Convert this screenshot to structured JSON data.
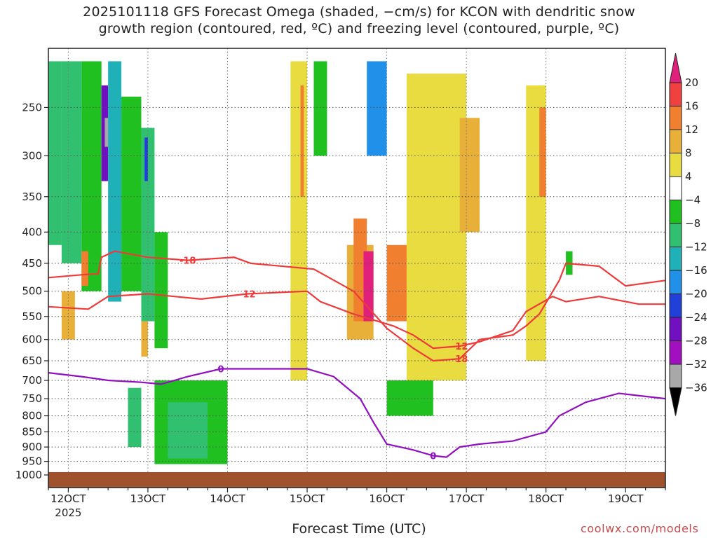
{
  "chart_data": {
    "type": "heatmap",
    "title_line1": "2025101118 GFS Forecast Omega (shaded, −cm/s) for KCON with dendritic snow",
    "title_line2": "growth region (contoured, red, ºC) and freezing level (contoured, purple, ºC)",
    "xlabel": "Forecast Time (UTC)",
    "x_year_label": "2025",
    "credit": "coolwx.com/models",
    "x_ticks": [
      {
        "h": 0,
        "label": "12OCT"
      },
      {
        "h": 24,
        "label": "13OCT"
      },
      {
        "h": 48,
        "label": "14OCT"
      },
      {
        "h": 72,
        "label": "15OCT"
      },
      {
        "h": 96,
        "label": "16OCT"
      },
      {
        "h": 120,
        "label": "17OCT"
      },
      {
        "h": 144,
        "label": "18OCT"
      },
      {
        "h": 168,
        "label": "19OCT"
      }
    ],
    "x_range_h": [
      -6,
      180
    ],
    "y_ticks": [
      250,
      300,
      350,
      400,
      450,
      500,
      550,
      600,
      650,
      700,
      750,
      800,
      850,
      900,
      950,
      1000
    ],
    "y_range_hpa": [
      200,
      1000
    ],
    "y_scale": "log-pressure",
    "grid": true,
    "colorbar": {
      "ticks": [
        "20",
        "16",
        "12",
        "8",
        "4",
        "−4",
        "−8",
        "−12",
        "−16",
        "−20",
        "−24",
        "−28",
        "−32",
        "−36"
      ],
      "colors": [
        "#e0207a",
        "#f04040",
        "#f08030",
        "#e8b038",
        "#e8dc40",
        "#ffffff",
        "#20c020",
        "#30c070",
        "#20b0b8",
        "#2090e8",
        "#2040d8",
        "#7010c0",
        "#a010c0",
        "#a8a8a8",
        "#000000"
      ]
    },
    "omega_cells": [
      {
        "h0": -6,
        "h1": -2,
        "p0": 210,
        "p1": 420,
        "v": -10
      },
      {
        "h0": -2,
        "h1": 4,
        "p0": 210,
        "p1": 450,
        "v": -12
      },
      {
        "h0": 4,
        "h1": 10,
        "p0": 210,
        "p1": 500,
        "v": -8
      },
      {
        "h0": 10,
        "h1": 12,
        "p0": 230,
        "p1": 330,
        "v": -28
      },
      {
        "h0": 11,
        "h1": 12,
        "p0": 260,
        "p1": 290,
        "v": -36
      },
      {
        "h0": 12,
        "h1": 16,
        "p0": 210,
        "p1": 520,
        "v": -14
      },
      {
        "h0": 16,
        "h1": 22,
        "p0": 240,
        "p1": 500,
        "v": -8
      },
      {
        "h0": 22,
        "h1": 26,
        "p0": 270,
        "p1": 560,
        "v": -12
      },
      {
        "h0": 23,
        "h1": 24,
        "p0": 280,
        "p1": 330,
        "v": -22
      },
      {
        "h0": 26,
        "h1": 30,
        "p0": 400,
        "p1": 620,
        "v": -8
      },
      {
        "h0": 26,
        "h1": 48,
        "p0": 700,
        "p1": 960,
        "v": -8
      },
      {
        "h0": 30,
        "h1": 42,
        "p0": 760,
        "p1": 940,
        "v": -12
      },
      {
        "h0": 18,
        "h1": 22,
        "p0": 720,
        "p1": 900,
        "v": -12
      },
      {
        "h0": -2,
        "h1": 2,
        "p0": 500,
        "p1": 600,
        "v": 8
      },
      {
        "h0": 4,
        "h1": 6,
        "p0": 430,
        "p1": 490,
        "v": 12
      },
      {
        "h0": 22,
        "h1": 24,
        "p0": 560,
        "p1": 640,
        "v": 8
      },
      {
        "h0": 67,
        "h1": 72,
        "p0": 210,
        "p1": 700,
        "v": 4
      },
      {
        "h0": 70,
        "h1": 71,
        "p0": 230,
        "p1": 350,
        "v": 12
      },
      {
        "h0": 74,
        "h1": 78,
        "p0": 210,
        "p1": 300,
        "v": -8
      },
      {
        "h0": 84,
        "h1": 92,
        "p0": 420,
        "p1": 600,
        "v": 8
      },
      {
        "h0": 86,
        "h1": 90,
        "p0": 380,
        "p1": 560,
        "v": 12
      },
      {
        "h0": 89,
        "h1": 92,
        "p0": 430,
        "p1": 560,
        "v": 20
      },
      {
        "h0": 90,
        "h1": 96,
        "p0": 210,
        "p1": 300,
        "v": -20
      },
      {
        "h0": 96,
        "h1": 102,
        "p0": 420,
        "p1": 560,
        "v": 12
      },
      {
        "h0": 96,
        "h1": 110,
        "p0": 700,
        "p1": 800,
        "v": -8
      },
      {
        "h0": 102,
        "h1": 120,
        "p0": 220,
        "p1": 700,
        "v": 4
      },
      {
        "h0": 118,
        "h1": 124,
        "p0": 260,
        "p1": 400,
        "v": 8
      },
      {
        "h0": 138,
        "h1": 144,
        "p0": 230,
        "p1": 650,
        "v": 4
      },
      {
        "h0": 142,
        "h1": 144,
        "p0": 250,
        "p1": 350,
        "v": 12
      },
      {
        "h0": 150,
        "h1": 152,
        "p0": 430,
        "p1": 470,
        "v": -8
      }
    ],
    "contours": [
      {
        "label": "-18",
        "color": "#ee3a3a",
        "pts": [
          [
            -6,
            475
          ],
          [
            4,
            470
          ],
          [
            9,
            468
          ],
          [
            10,
            440
          ],
          [
            14,
            430
          ],
          [
            24,
            440
          ],
          [
            36,
            445
          ],
          [
            50,
            440
          ],
          [
            55,
            450
          ],
          [
            74,
            460
          ],
          [
            86,
            500
          ],
          [
            96,
            575
          ],
          [
            104,
            620
          ],
          [
            110,
            650
          ],
          [
            118,
            645
          ],
          [
            124,
            600
          ],
          [
            134,
            590
          ],
          [
            138,
            570
          ],
          [
            142,
            545
          ],
          [
            148,
            480
          ],
          [
            150,
            450
          ],
          [
            160,
            455
          ],
          [
            168,
            490
          ],
          [
            180,
            480
          ]
        ]
      },
      {
        "label": "-12",
        "color": "#ee3a3a",
        "pts": [
          [
            -6,
            530
          ],
          [
            6,
            535
          ],
          [
            12,
            510
          ],
          [
            24,
            505
          ],
          [
            40,
            515
          ],
          [
            54,
            505
          ],
          [
            72,
            500
          ],
          [
            76,
            520
          ],
          [
            86,
            545
          ],
          [
            98,
            570
          ],
          [
            104,
            590
          ],
          [
            110,
            620
          ],
          [
            118,
            615
          ],
          [
            124,
            605
          ],
          [
            134,
            580
          ],
          [
            138,
            540
          ],
          [
            146,
            510
          ],
          [
            150,
            520
          ],
          [
            160,
            510
          ],
          [
            172,
            525
          ],
          [
            180,
            525
          ]
        ]
      },
      {
        "label": "0",
        "color": "#9010c0",
        "pts": [
          [
            -6,
            680
          ],
          [
            4,
            690
          ],
          [
            12,
            700
          ],
          [
            22,
            705
          ],
          [
            28,
            710
          ],
          [
            36,
            690
          ],
          [
            46,
            670
          ],
          [
            58,
            670
          ],
          [
            72,
            670
          ],
          [
            80,
            690
          ],
          [
            88,
            750
          ],
          [
            92,
            820
          ],
          [
            96,
            890
          ],
          [
            104,
            910
          ],
          [
            110,
            930
          ],
          [
            114,
            935
          ],
          [
            118,
            900
          ],
          [
            124,
            890
          ],
          [
            134,
            880
          ],
          [
            144,
            850
          ],
          [
            148,
            800
          ],
          [
            156,
            760
          ],
          [
            166,
            735
          ],
          [
            180,
            750
          ]
        ]
      }
    ]
  }
}
